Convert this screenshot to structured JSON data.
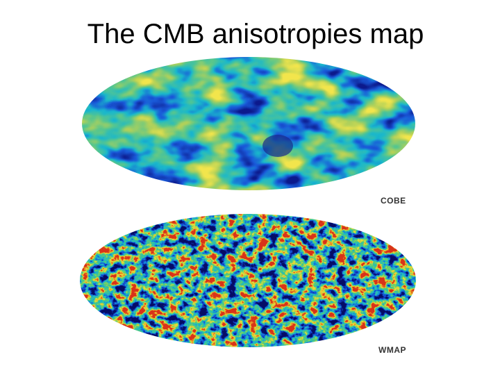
{
  "title": "The CMB anisotropies map",
  "maps": [
    {
      "label": "COBE"
    },
    {
      "label": "WMAP"
    }
  ]
}
